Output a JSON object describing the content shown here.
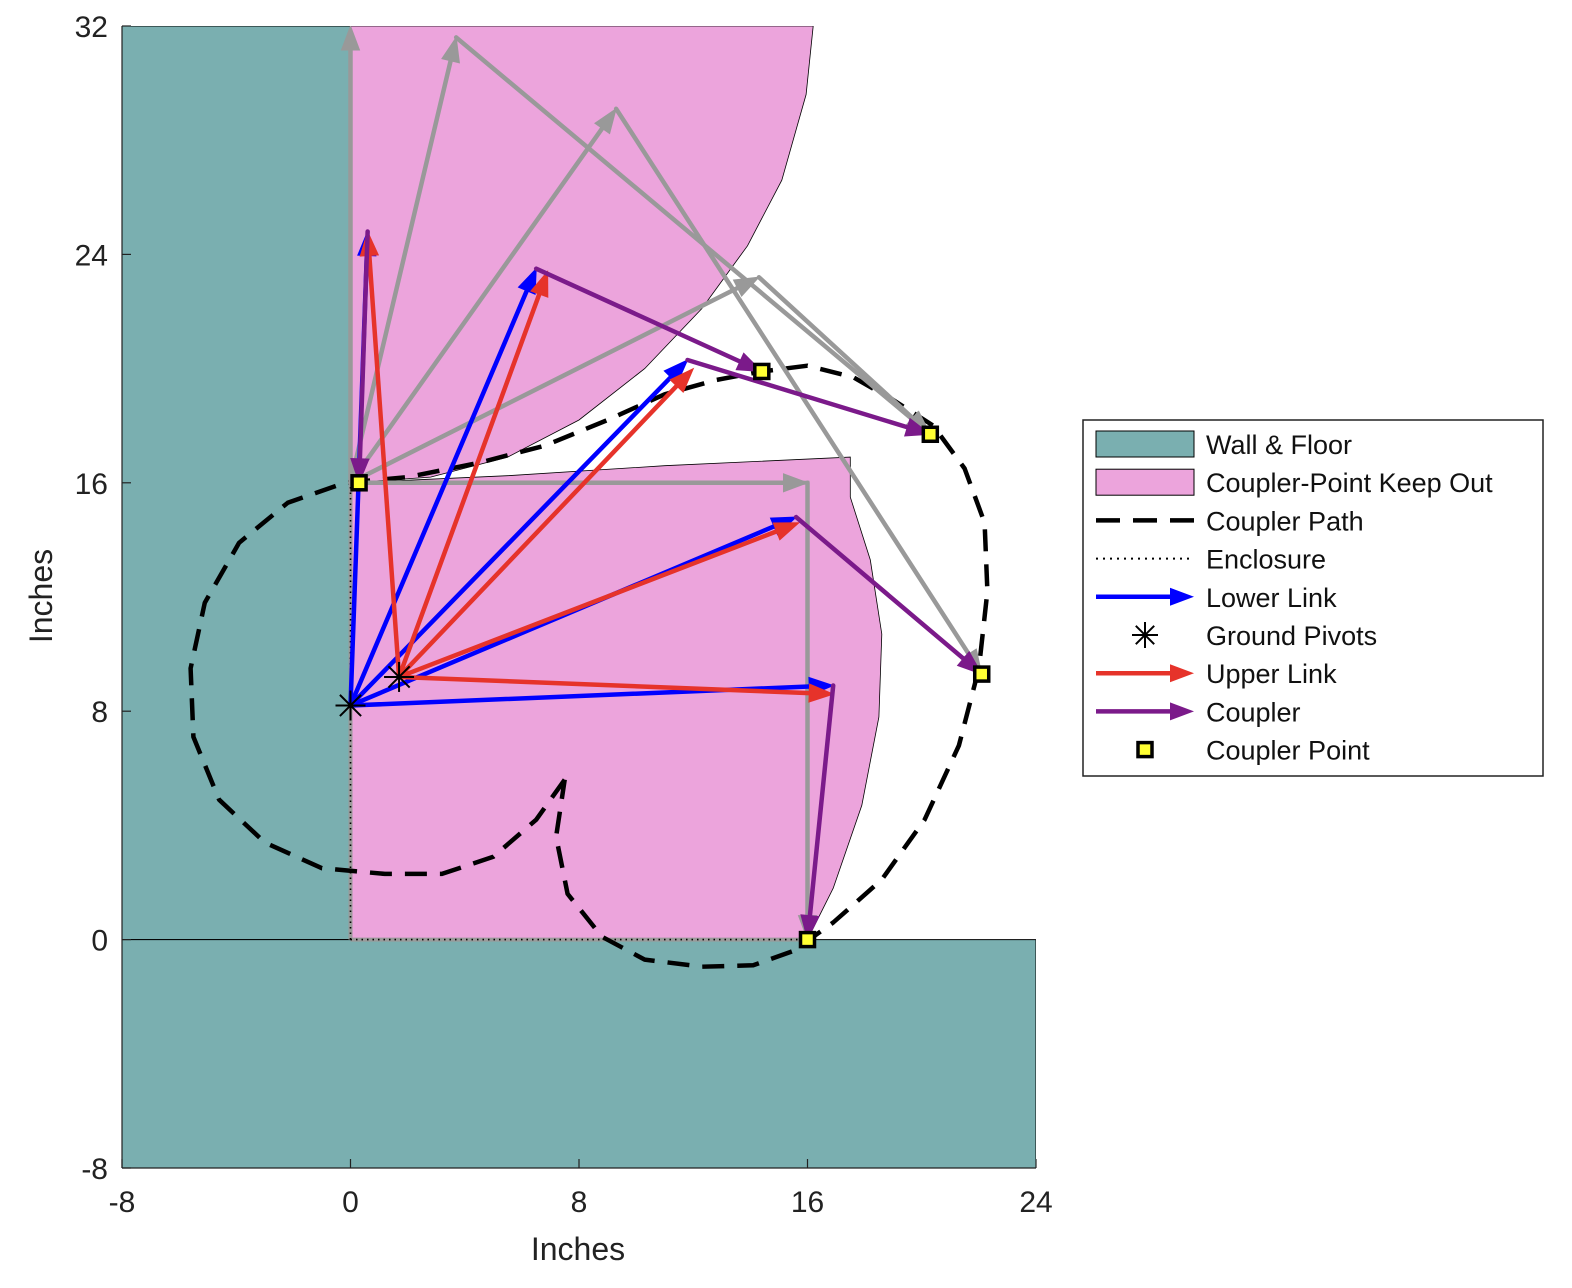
{
  "chart_data": {
    "type": "line",
    "xlabel": "Inches",
    "ylabel": "Inches",
    "xlim": [
      -8,
      24
    ],
    "ylim": [
      -8,
      32
    ],
    "xticks": [
      -8,
      0,
      8,
      16,
      24
    ],
    "yticks": [
      -8,
      0,
      8,
      16,
      24,
      32
    ],
    "xtick_labels": [
      "-8",
      "0",
      "8",
      "16",
      "24"
    ],
    "ytick_labels": [
      "-8",
      "0",
      "8",
      "16",
      "24",
      "32"
    ],
    "grid": false,
    "legend_position": "right-outside",
    "colors": {
      "wall_floor": "#7aafb0",
      "keep_out": "#eca4dc",
      "coupler_path": "#000000",
      "enclosure": "#000000",
      "lower_link": "#0000ff",
      "upper_link": "#e6332a",
      "coupler": "#7b1a8a",
      "ghost": "#999999",
      "coupler_point_fill": "#ffff33"
    },
    "legend": [
      {
        "label": "Wall & Floor",
        "kind": "patch",
        "color": "#7aafb0"
      },
      {
        "label": "Coupler-Point Keep Out",
        "kind": "patch",
        "color": "#eca4dc"
      },
      {
        "label": "Coupler Path",
        "kind": "dashed",
        "color": "#000000"
      },
      {
        "label": "Enclosure",
        "kind": "dotted",
        "color": "#000000"
      },
      {
        "label": "Lower Link",
        "kind": "arrow",
        "color": "#0000ff"
      },
      {
        "label": "Ground Pivots",
        "kind": "asterisk",
        "color": "#000000"
      },
      {
        "label": "Upper Link",
        "kind": "arrow",
        "color": "#e6332a"
      },
      {
        "label": "Coupler",
        "kind": "arrow",
        "color": "#7b1a8a"
      },
      {
        "label": "Coupler Point",
        "kind": "square",
        "color": "#ffff33"
      }
    ],
    "wall_floor": [
      [
        [
          -8,
          0
        ],
        [
          0,
          0
        ],
        [
          0,
          32
        ],
        [
          -8,
          32
        ]
      ],
      [
        [
          -8,
          -8
        ],
        [
          24,
          -8
        ],
        [
          24,
          0
        ],
        [
          -8,
          0
        ]
      ]
    ],
    "keep_out": [
      {
        "center": [
          0,
          16
        ],
        "r": 16.2,
        "points": [
          [
            0,
            32
          ],
          [
            16.2,
            32
          ],
          [
            15.95,
            29.6
          ],
          [
            15.1,
            26.6
          ],
          [
            13.9,
            24.3
          ],
          [
            12.3,
            22.1
          ],
          [
            10.3,
            20.0
          ],
          [
            8.0,
            18.2
          ],
          [
            5.5,
            16.9
          ],
          [
            2.8,
            16.2
          ],
          [
            0,
            16
          ]
        ]
      },
      {
        "points": [
          [
            0,
            16
          ],
          [
            0,
            0
          ],
          [
            16,
            0
          ],
          [
            16.9,
            1.8
          ],
          [
            17.9,
            4.7
          ],
          [
            18.5,
            7.8
          ],
          [
            18.6,
            10.7
          ],
          [
            18.2,
            13.3
          ],
          [
            17.5,
            15.5
          ],
          [
            17.5,
            16.9
          ],
          [
            11,
            16.6
          ],
          [
            5.5,
            16.25
          ],
          [
            0,
            16
          ]
        ]
      }
    ],
    "enclosure": [
      [
        0,
        0
      ],
      [
        16,
        0
      ],
      [
        16,
        16
      ],
      [
        0,
        16
      ],
      [
        0,
        0
      ]
    ],
    "coupler_path": [
      [
        7.5,
        5.6
      ],
      [
        6.5,
        4.2
      ],
      [
        5,
        2.9
      ],
      [
        3.2,
        2.3
      ],
      [
        1.2,
        2.3
      ],
      [
        -1,
        2.5
      ],
      [
        -3,
        3.4
      ],
      [
        -4.6,
        4.9
      ],
      [
        -5.5,
        7.1
      ],
      [
        -5.6,
        9.5
      ],
      [
        -5.1,
        11.8
      ],
      [
        -3.9,
        13.9
      ],
      [
        -2.2,
        15.3
      ],
      [
        -0.2,
        16
      ],
      [
        2,
        16.2
      ],
      [
        4.5,
        16.7
      ],
      [
        6.8,
        17.3
      ],
      [
        9,
        18.2
      ],
      [
        11,
        19.1
      ],
      [
        12.8,
        19.6
      ],
      [
        14.4,
        19.9
      ],
      [
        16,
        20.1
      ],
      [
        17.6,
        19.7
      ],
      [
        19.0,
        18.9
      ],
      [
        20.4,
        18.0
      ],
      [
        21.5,
        16.5
      ],
      [
        22.2,
        14.6
      ],
      [
        22.3,
        12.2
      ],
      [
        22,
        9.5
      ],
      [
        21.3,
        6.8
      ],
      [
        20.1,
        4.2
      ],
      [
        18.6,
        2.1
      ],
      [
        16.9,
        0.6
      ],
      [
        15.5,
        -0.4
      ],
      [
        14.1,
        -0.9
      ],
      [
        12.3,
        -0.95
      ],
      [
        10.3,
        -0.7
      ],
      [
        8.8,
        0.1
      ],
      [
        7.6,
        1.6
      ],
      [
        7.2,
        3.6
      ],
      [
        7.5,
        5.6
      ]
    ],
    "ground_pivots": [
      [
        0,
        8.2
      ],
      [
        1.7,
        9.2
      ]
    ],
    "coupler_points": [
      [
        0.3,
        16
      ],
      [
        14.4,
        19.9
      ],
      [
        20.3,
        17.7
      ],
      [
        22.1,
        9.3
      ],
      [
        16,
        0
      ]
    ],
    "ghost_arrows": [
      [
        [
          0,
          16
        ],
        [
          0,
          32
        ]
      ],
      [
        [
          0,
          16
        ],
        [
          3.7,
          31.6
        ]
      ],
      [
        [
          0,
          16
        ],
        [
          9.3,
          29.1
        ]
      ],
      [
        [
          0,
          16
        ],
        [
          14.3,
          23.2
        ]
      ],
      [
        [
          3.7,
          31.6
        ],
        [
          20.3,
          17.7
        ]
      ],
      [
        [
          9.3,
          29.1
        ],
        [
          22.1,
          9.3
        ]
      ],
      [
        [
          14.3,
          23.2
        ],
        [
          20.3,
          17.7
        ]
      ],
      [
        [
          0,
          16
        ],
        [
          16,
          16
        ]
      ],
      [
        [
          16,
          16
        ],
        [
          16,
          0
        ]
      ]
    ],
    "lower_links": [
      [
        [
          0,
          8.2
        ],
        [
          0.6,
          24.8
        ]
      ],
      [
        [
          0,
          8.2
        ],
        [
          6.5,
          23.5
        ]
      ],
      [
        [
          0,
          8.2
        ],
        [
          11.8,
          20.3
        ]
      ],
      [
        [
          0,
          8.2
        ],
        [
          15.6,
          14.8
        ]
      ],
      [
        [
          0,
          8.2
        ],
        [
          16.9,
          8.9
        ]
      ]
    ],
    "upper_links": [
      [
        [
          1.7,
          9.2
        ],
        [
          0.6,
          24.8
        ]
      ],
      [
        [
          1.7,
          9.2
        ],
        [
          6.9,
          23.4
        ]
      ],
      [
        [
          1.7,
          9.2
        ],
        [
          12.0,
          20.0
        ]
      ],
      [
        [
          1.7,
          9.2
        ],
        [
          15.7,
          14.6
        ]
      ],
      [
        [
          1.7,
          9.2
        ],
        [
          16.9,
          8.6
        ]
      ]
    ],
    "couplers": [
      [
        [
          0.6,
          24.8
        ],
        [
          0.3,
          16
        ]
      ],
      [
        [
          6.5,
          23.5
        ],
        [
          14.4,
          19.9
        ]
      ],
      [
        [
          11.8,
          20.3
        ],
        [
          20.3,
          17.7
        ]
      ],
      [
        [
          15.6,
          14.8
        ],
        [
          22.1,
          9.3
        ]
      ],
      [
        [
          16.9,
          8.9
        ],
        [
          16,
          0
        ]
      ]
    ]
  }
}
